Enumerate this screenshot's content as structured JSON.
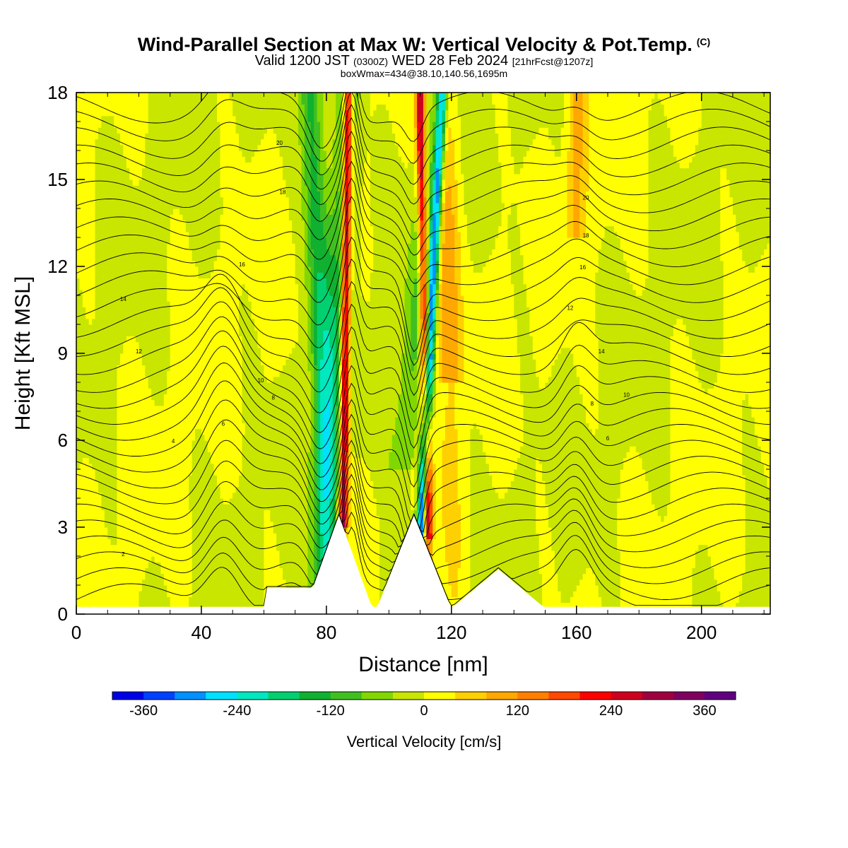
{
  "title": {
    "main": "Wind-Parallel Section at Max W: Vertical Velocity & Pot.Temp.",
    "copyright": "(C)",
    "valid_prefix": "Valid 1200 JST",
    "valid_utc": "(0300Z)",
    "valid_date": "WED 28 Feb 2024",
    "forecast": "[21hrFcst@1207z]",
    "box_info": "boxWmax=434@38.10,140.56,1695m"
  },
  "chart_data": {
    "type": "heatmap",
    "xlabel": "Distance [nm]",
    "ylabel": "Height [Kft MSL]",
    "xlim": [
      0,
      222
    ],
    "ylim": [
      0,
      18
    ],
    "x_ticks": [
      "0",
      "40",
      "80",
      "120",
      "160",
      "200"
    ],
    "y_ticks": [
      "0",
      "3",
      "6",
      "9",
      "12",
      "15",
      "18"
    ],
    "colorbar": {
      "title": "Vertical Velocity [cm/s]",
      "tick_labels": [
        "-360",
        "-240",
        "-120",
        "0",
        "120",
        "240",
        "360"
      ],
      "range": [
        -400,
        400
      ],
      "colors": [
        "#0000e8",
        "#0040ff",
        "#0090ff",
        "#00e0ff",
        "#00e8c0",
        "#00d070",
        "#10b030",
        "#40c020",
        "#80d800",
        "#c8e600",
        "#ffff00",
        "#ffd000",
        "#ffa800",
        "#ff8000",
        "#ff4800",
        "#ff0000",
        "#d00020",
        "#a00040",
        "#800060",
        "#600080"
      ]
    },
    "terrain_peaks_nm": [
      84,
      108,
      135
    ],
    "updraft_bands": [
      {
        "surface_x": 85,
        "top_x": 87,
        "sign": "positive"
      },
      {
        "surface_x": 113,
        "top_x": 110,
        "sign": "positive"
      }
    ],
    "downdraft_bands": [
      {
        "surface_x": 109,
        "top_x": 117,
        "sign": "negative"
      },
      {
        "surface_x": 82,
        "top_x": 75,
        "sign": "negative"
      }
    ],
    "theta_contour_labels": [
      "2",
      "4",
      "6",
      "8",
      "10",
      "12",
      "14",
      "16",
      "18",
      "20"
    ]
  }
}
